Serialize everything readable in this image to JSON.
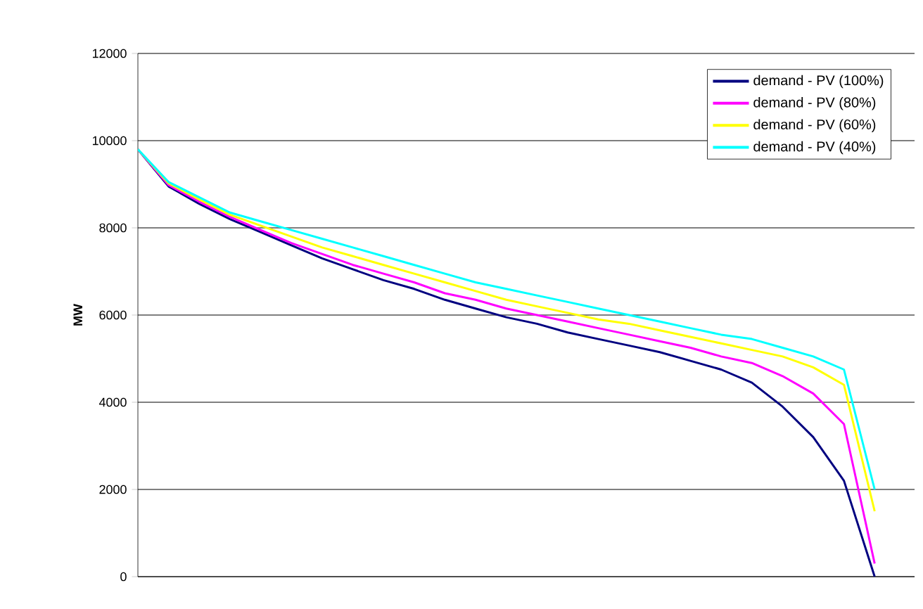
{
  "chart_data": {
    "type": "line",
    "ylabel": "MW",
    "categories": [
      null,
      null,
      null,
      null,
      null,
      null,
      null,
      null,
      null,
      null,
      null,
      null,
      null,
      null,
      null,
      null,
      null,
      null,
      null,
      null,
      null,
      null,
      null,
      null,
      null
    ],
    "series": [
      {
        "name": "demand - PV (100%)",
        "color": "#000080",
        "values": [
          9800,
          8950,
          8550,
          8200,
          7900,
          7600,
          7300,
          7050,
          6800,
          6600,
          6350,
          6150,
          5950,
          5800,
          5600,
          5450,
          5300,
          5150,
          4950,
          4750,
          4450,
          3900,
          3200,
          2200,
          0
        ]
      },
      {
        "name": "demand - PV (80%)",
        "color": "#ff00ff",
        "values": [
          9800,
          8980,
          8600,
          8250,
          7950,
          7650,
          7400,
          7150,
          6950,
          6750,
          6500,
          6350,
          6150,
          6000,
          5850,
          5700,
          5550,
          5400,
          5250,
          5050,
          4900,
          4600,
          4200,
          3500,
          300
        ]
      },
      {
        "name": "demand - PV (60%)",
        "color": "#ffff00",
        "values": [
          9800,
          9020,
          8650,
          8300,
          8050,
          7800,
          7550,
          7350,
          7150,
          6950,
          6750,
          6550,
          6350,
          6200,
          6050,
          5900,
          5800,
          5650,
          5500,
          5350,
          5200,
          5050,
          4800,
          4400,
          1500
        ]
      },
      {
        "name": "demand - PV (40%)",
        "color": "#00ffff",
        "values": [
          9800,
          9050,
          8700,
          8350,
          8150,
          7950,
          7750,
          7550,
          7350,
          7150,
          6950,
          6750,
          6600,
          6450,
          6300,
          6150,
          6000,
          5850,
          5700,
          5550,
          5450,
          5250,
          5050,
          4750,
          2000
        ]
      }
    ],
    "ylim": [
      0,
      12000
    ],
    "yticks": [
      0,
      2000,
      4000,
      6000,
      8000,
      10000,
      12000
    ],
    "grid": "y",
    "legend": "top right",
    "marker": "none",
    "line_style": "solid"
  }
}
